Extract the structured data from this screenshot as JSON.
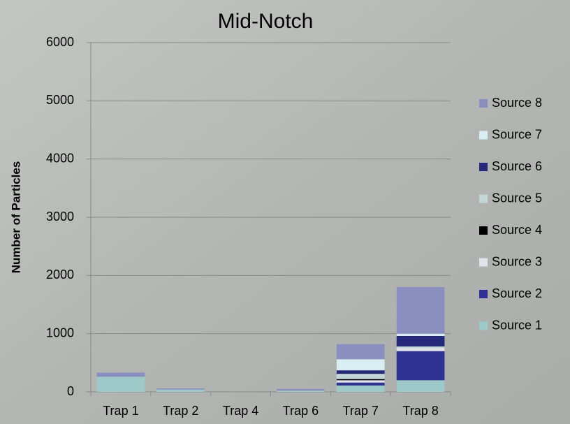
{
  "chart_data": {
    "type": "stacked_bar",
    "title": "Mid-Notch",
    "y_label": "Number of Particles",
    "categories": [
      "Trap 1",
      "Trap 2",
      "Trap 4",
      "Trap 6",
      "Trap 7",
      "Trap 8"
    ],
    "series": [
      {
        "name": "Source 1",
        "color": "#9ec9c9",
        "values": [
          260,
          40,
          0,
          20,
          110,
          200
        ]
      },
      {
        "name": "Source 2",
        "color": "#2e3192",
        "values": [
          0,
          0,
          0,
          0,
          50,
          500
        ]
      },
      {
        "name": "Source 3",
        "color": "#e2e2ea",
        "values": [
          0,
          0,
          0,
          0,
          40,
          50
        ]
      },
      {
        "name": "Source 4",
        "color": "#000000",
        "values": [
          0,
          0,
          0,
          0,
          20,
          0
        ]
      },
      {
        "name": "Source 5",
        "color": "#c2d6d8",
        "values": [
          0,
          0,
          0,
          0,
          90,
          30
        ]
      },
      {
        "name": "Source 6",
        "color": "#26287a",
        "values": [
          0,
          0,
          0,
          0,
          60,
          180
        ]
      },
      {
        "name": "Source 7",
        "color": "#d8eef3",
        "values": [
          0,
          0,
          0,
          0,
          190,
          40
        ]
      },
      {
        "name": "Source 8",
        "color": "#8b8fc0",
        "values": [
          70,
          20,
          0,
          30,
          260,
          800
        ]
      }
    ],
    "ylim": [
      0,
      6000
    ],
    "yticks": [
      0,
      1000,
      2000,
      3000,
      4000,
      5000,
      6000
    ],
    "grid": true,
    "legend_position": "right"
  }
}
